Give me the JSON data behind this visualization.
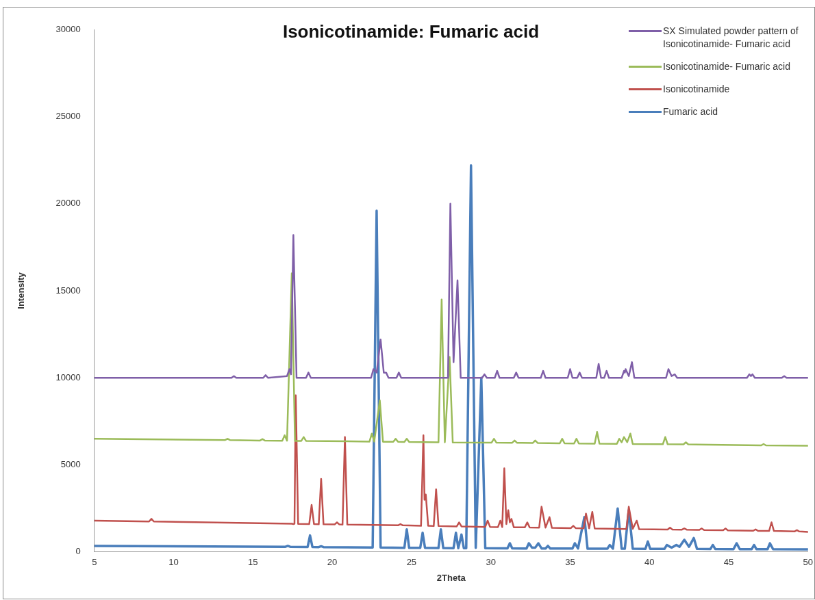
{
  "chart_data": {
    "type": "line",
    "title": "Isonicotinamide: Fumaric acid",
    "xlabel": "2Theta",
    "ylabel": "Intensity",
    "xlim": [
      5,
      50
    ],
    "xticks": [
      5,
      10,
      15,
      20,
      25,
      30,
      35,
      40,
      45,
      50
    ],
    "ylim": [
      0,
      30000
    ],
    "yticks": [
      0,
      5000,
      10000,
      15000,
      20000,
      25000,
      30000
    ],
    "grid": false,
    "legend": "top right",
    "marker": "none",
    "line_style": "solid",
    "series": [
      {
        "name": "SX Simulated powder pattern of Isonicotinamide- Fumaric acid",
        "color": "#7f5fa8",
        "x": [
          5,
          13.65,
          13.8,
          13.95,
          15.65,
          15.8,
          15.95,
          17.15,
          17.3,
          17.4,
          17.55,
          17.75,
          18.35,
          18.5,
          18.65,
          22.45,
          22.6,
          22.8,
          23.05,
          23.25,
          23.4,
          23.55,
          24.05,
          24.2,
          24.35,
          27.3,
          27.45,
          27.65,
          27.9,
          28.1,
          29.45,
          29.6,
          29.75,
          30.25,
          30.4,
          30.55,
          31.45,
          31.6,
          31.75,
          33.15,
          33.3,
          33.45,
          34.85,
          35,
          35.15,
          35.45,
          35.6,
          35.75,
          36.65,
          36.8,
          36.95,
          37.15,
          37.3,
          37.45,
          38.25,
          38.4,
          38.45,
          38.5,
          38.7,
          38.9,
          39.05,
          41.05,
          41.2,
          41.4,
          41.6,
          41.75,
          46.15,
          46.3,
          46.4,
          46.5,
          46.65,
          48.35,
          48.5,
          48.65,
          50
        ],
        "values": [
          10000,
          10000,
          10100,
          10000,
          10000,
          10150,
          10000,
          10100,
          10500,
          10200,
          18200,
          10000,
          10000,
          10300,
          10000,
          10000,
          10500,
          10300,
          12200,
          10300,
          10300,
          10000,
          10000,
          10300,
          10000,
          10000,
          20000,
          10900,
          15600,
          10000,
          10000,
          10200,
          10000,
          10000,
          10400,
          10000,
          10000,
          10300,
          10000,
          10000,
          10400,
          10000,
          10000,
          10500,
          10000,
          10000,
          10300,
          10000,
          10000,
          10800,
          10000,
          10000,
          10400,
          10000,
          10000,
          10400,
          10300,
          10500,
          10100,
          10900,
          10000,
          10000,
          10500,
          10100,
          10200,
          10000,
          10000,
          10200,
          10100,
          10200,
          10000,
          10000,
          10100,
          10000,
          10000
        ]
      },
      {
        "name": "Isonicotinamide- Fumaric acid",
        "color": "#9bbb59",
        "x": [
          5,
          13.25,
          13.4,
          13.55,
          15.45,
          15.6,
          15.75,
          16.85,
          17.0,
          17.15,
          17.45,
          17.65,
          18.05,
          18.2,
          18.35,
          22.35,
          22.5,
          22.65,
          23.0,
          23.2,
          23.85,
          24.0,
          24.15,
          24.55,
          24.7,
          24.85,
          26.7,
          26.9,
          27.1,
          27.4,
          27.6,
          30.05,
          30.2,
          30.35,
          31.35,
          31.5,
          31.65,
          32.65,
          32.8,
          32.95,
          34.35,
          34.5,
          34.65,
          35.25,
          35.4,
          35.55,
          36.55,
          36.7,
          36.85,
          37.95,
          38.1,
          38.25,
          38.4,
          38.6,
          38.8,
          38.95,
          40.85,
          41.0,
          41.15,
          42.15,
          42.3,
          42.45,
          47.05,
          47.2,
          47.35,
          50
        ],
        "values": [
          6500,
          6430,
          6500,
          6430,
          6400,
          6480,
          6400,
          6390,
          6700,
          6390,
          16000,
          6380,
          6380,
          6600,
          6380,
          6340,
          6800,
          6340,
          8700,
          6330,
          6330,
          6500,
          6330,
          6320,
          6500,
          6320,
          6300,
          14500,
          6300,
          11200,
          6290,
          6280,
          6500,
          6280,
          6270,
          6400,
          6270,
          6260,
          6400,
          6260,
          6240,
          6500,
          6240,
          6230,
          6500,
          6230,
          6220,
          6900,
          6220,
          6210,
          6500,
          6300,
          6600,
          6300,
          6800,
          6200,
          6190,
          6600,
          6190,
          6180,
          6300,
          6180,
          6120,
          6200,
          6120,
          6100
        ]
      },
      {
        "name": "Isonicotinamide",
        "color": "#c0504d",
        "x": [
          5,
          8.45,
          8.6,
          8.75,
          17.45,
          17.55,
          17.62,
          17.7,
          17.85,
          18.55,
          18.7,
          18.85,
          19.15,
          19.3,
          19.45,
          20.15,
          20.3,
          20.45,
          20.65,
          20.8,
          20.95,
          24.15,
          24.3,
          24.45,
          25.6,
          25.75,
          25.82,
          25.9,
          26.05,
          26.4,
          26.55,
          26.7,
          27.85,
          28.0,
          28.15,
          29.65,
          29.8,
          29.95,
          30.45,
          30.6,
          30.72,
          30.85,
          30.98,
          31.1,
          31.2,
          31.3,
          31.45,
          32.15,
          32.3,
          32.45,
          33.05,
          33.2,
          33.45,
          33.7,
          33.85,
          35.05,
          35.2,
          35.35,
          35.85,
          36.0,
          36.2,
          36.4,
          36.55,
          38.55,
          38.7,
          38.95,
          39.2,
          39.35,
          41.15,
          41.3,
          41.45,
          42.05,
          42.2,
          42.35,
          43.15,
          43.3,
          43.45,
          44.65,
          44.8,
          44.95,
          46.55,
          46.7,
          46.85,
          47.55,
          47.7,
          47.85,
          49.15,
          49.3,
          49.45,
          50
        ],
        "values": [
          1800,
          1750,
          1900,
          1750,
          1620,
          1600,
          1620,
          9000,
          1610,
          1600,
          2700,
          1600,
          1590,
          4200,
          1590,
          1580,
          1700,
          1580,
          1570,
          6600,
          1570,
          1530,
          1600,
          1530,
          1500,
          6700,
          3000,
          3300,
          1500,
          1490,
          3600,
          1490,
          1470,
          1700,
          1470,
          1440,
          1800,
          1440,
          1430,
          1800,
          1430,
          4800,
          1600,
          2400,
          1700,
          1900,
          1420,
          1420,
          1700,
          1410,
          1400,
          2600,
          1400,
          2000,
          1390,
          1370,
          1500,
          1370,
          1360,
          2200,
          1360,
          2300,
          1350,
          1320,
          2600,
          1330,
          1800,
          1310,
          1290,
          1400,
          1290,
          1280,
          1350,
          1280,
          1270,
          1350,
          1260,
          1250,
          1350,
          1240,
          1220,
          1300,
          1210,
          1210,
          1700,
          1210,
          1180,
          1250,
          1180,
          1150
        ]
      },
      {
        "name": "Fumaric acid",
        "color": "#4a7ebb",
        "x": [
          5,
          17.05,
          17.2,
          17.35,
          18.45,
          18.6,
          18.75,
          19.15,
          19.3,
          19.45,
          22.55,
          22.8,
          23.05,
          24.55,
          24.7,
          24.85,
          25.55,
          25.7,
          25.85,
          26.7,
          26.85,
          27.0,
          27.65,
          27.8,
          27.95,
          28.15,
          28.3,
          28.45,
          28.75,
          29.05,
          29.4,
          29.65,
          31.05,
          31.2,
          31.35,
          32.25,
          32.4,
          32.6,
          32.8,
          33.0,
          33.2,
          33.45,
          33.6,
          33.75,
          35.15,
          35.3,
          35.5,
          35.9,
          36.1,
          37.35,
          37.5,
          37.7,
          38.0,
          38.25,
          38.45,
          38.7,
          38.95,
          39.75,
          39.9,
          40.05,
          40.95,
          41.1,
          41.4,
          41.7,
          41.9,
          42.2,
          42.5,
          42.8,
          43.0,
          43.85,
          44.0,
          44.15,
          45.3,
          45.5,
          45.7,
          46.45,
          46.6,
          46.75,
          47.45,
          47.6,
          47.8,
          50
        ],
        "values": [
          350,
          300,
          350,
          300,
          290,
          950,
          290,
          280,
          330,
          280,
          260,
          19600,
          260,
          240,
          1300,
          240,
          240,
          1100,
          240,
          230,
          1300,
          230,
          220,
          1100,
          220,
          1000,
          220,
          220,
          22200,
          240,
          10000,
          220,
          210,
          500,
          210,
          200,
          500,
          250,
          250,
          500,
          200,
          200,
          350,
          200,
          200,
          500,
          200,
          2000,
          190,
          190,
          400,
          190,
          2500,
          190,
          190,
          2400,
          190,
          180,
          600,
          180,
          180,
          400,
          250,
          400,
          300,
          700,
          300,
          800,
          180,
          170,
          400,
          170,
          160,
          500,
          160,
          160,
          400,
          160,
          160,
          500,
          160,
          150
        ]
      }
    ]
  }
}
